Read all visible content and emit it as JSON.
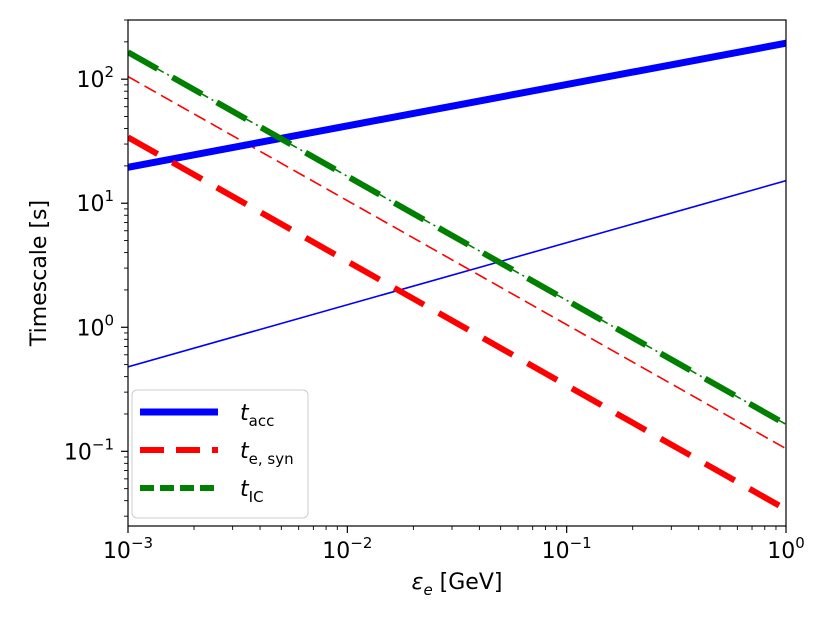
{
  "chart_data": {
    "type": "line",
    "xscale": "log",
    "yscale": "log",
    "xlim": [
      0.001,
      1
    ],
    "ylim": [
      0.025,
      300
    ],
    "xlabel": "ε_e [GeV]",
    "xlabel_symbol": "ε",
    "xlabel_sub": "e",
    "xlabel_unit": "[GeV]",
    "ylabel": "Timescale [s]",
    "x_ticks": [
      {
        "value": 0.001,
        "base": "10",
        "exp": "−3"
      },
      {
        "value": 0.01,
        "base": "10",
        "exp": "−2"
      },
      {
        "value": 0.1,
        "base": "10",
        "exp": "−1"
      },
      {
        "value": 1,
        "base": "10",
        "exp": "0"
      }
    ],
    "y_ticks": [
      {
        "value": 0.1,
        "base": "10",
        "exp": "−1"
      },
      {
        "value": 1,
        "base": "10",
        "exp": "0"
      },
      {
        "value": 10,
        "base": "10",
        "exp": "1"
      },
      {
        "value": 100,
        "base": "10",
        "exp": "2"
      }
    ],
    "legend_position": "lower-left",
    "series": [
      {
        "name": "t_acc",
        "label_main": "t",
        "label_sub": "acc",
        "color": "#0000ff",
        "style": "solid",
        "width": "thick",
        "x": [
          0.001,
          1
        ],
        "y": [
          19.5,
          195
        ]
      },
      {
        "name": "t_acc (thin)",
        "color": "#0000ff",
        "style": "solid",
        "width": "thin",
        "x": [
          0.001,
          1
        ],
        "y": [
          0.48,
          15.2
        ]
      },
      {
        "name": "t_e,syn",
        "label_main": "t",
        "label_sub": "e, syn",
        "color": "#ff0000",
        "style": "dashed",
        "width": "thick",
        "x": [
          0.001,
          1
        ],
        "y": [
          34,
          0.034
        ]
      },
      {
        "name": "t_e,syn (thin)",
        "color": "#ff0000",
        "style": "dashed",
        "width": "thin",
        "x": [
          0.001,
          1
        ],
        "y": [
          105,
          0.105
        ]
      },
      {
        "name": "t_IC",
        "label_main": "t",
        "label_sub": "IC",
        "color": "#008000",
        "style": "dashed",
        "width": "thick",
        "x": [
          0.001,
          1
        ],
        "y": [
          165,
          0.165
        ]
      },
      {
        "name": "t_IC (thin)",
        "color": "#008000",
        "style": "dashdot",
        "width": "thin",
        "x": [
          0.001,
          1
        ],
        "y": [
          165,
          0.165
        ]
      }
    ]
  }
}
